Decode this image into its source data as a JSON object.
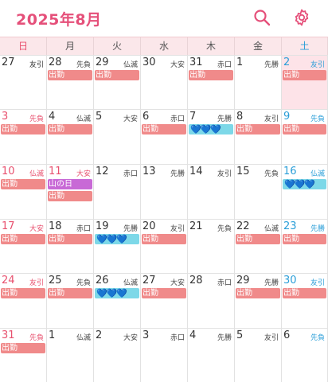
{
  "header": {
    "title": "2025年8月",
    "accent": "#e5507a"
  },
  "weekdays": [
    "日",
    "月",
    "火",
    "水",
    "木",
    "金",
    "土"
  ],
  "weeks": [
    [
      {
        "day": "27",
        "rokuyo": "友引",
        "out": true,
        "events": []
      },
      {
        "day": "28",
        "rokuyo": "先負",
        "out": true,
        "events": [
          {
            "type": "work",
            "label": "出勤"
          }
        ]
      },
      {
        "day": "29",
        "rokuyo": "仏滅",
        "out": true,
        "events": [
          {
            "type": "work",
            "label": "出勤"
          }
        ]
      },
      {
        "day": "30",
        "rokuyo": "大安",
        "out": true,
        "events": []
      },
      {
        "day": "31",
        "rokuyo": "赤口",
        "out": true,
        "events": [
          {
            "type": "work",
            "label": "出勤"
          }
        ]
      },
      {
        "day": "1",
        "rokuyo": "先勝",
        "events": []
      },
      {
        "day": "2",
        "rokuyo": "友引",
        "today": true,
        "events": [
          {
            "type": "work",
            "label": "出勤"
          }
        ]
      }
    ],
    [
      {
        "day": "3",
        "rokuyo": "先負",
        "events": [
          {
            "type": "work",
            "label": "出勤"
          }
        ]
      },
      {
        "day": "4",
        "rokuyo": "仏滅",
        "events": [
          {
            "type": "work",
            "label": "出勤"
          }
        ]
      },
      {
        "day": "5",
        "rokuyo": "大安",
        "events": []
      },
      {
        "day": "6",
        "rokuyo": "赤口",
        "events": [
          {
            "type": "work",
            "label": "出勤"
          }
        ]
      },
      {
        "day": "7",
        "rokuyo": "先勝",
        "events": [
          {
            "type": "hearts",
            "label": "💙💙💙"
          }
        ]
      },
      {
        "day": "8",
        "rokuyo": "友引",
        "events": [
          {
            "type": "work",
            "label": "出勤"
          }
        ]
      },
      {
        "day": "9",
        "rokuyo": "先負",
        "events": [
          {
            "type": "work",
            "label": "出勤"
          }
        ]
      }
    ],
    [
      {
        "day": "10",
        "rokuyo": "仏滅",
        "events": [
          {
            "type": "work",
            "label": "出勤"
          }
        ]
      },
      {
        "day": "11",
        "rokuyo": "大安",
        "holiday": true,
        "events": [
          {
            "type": "hol",
            "label": "山の日"
          },
          {
            "type": "work",
            "label": "出勤"
          }
        ]
      },
      {
        "day": "12",
        "rokuyo": "赤口",
        "events": []
      },
      {
        "day": "13",
        "rokuyo": "先勝",
        "events": []
      },
      {
        "day": "14",
        "rokuyo": "友引",
        "events": []
      },
      {
        "day": "15",
        "rokuyo": "先負",
        "events": []
      },
      {
        "day": "16",
        "rokuyo": "仏滅",
        "events": [
          {
            "type": "hearts",
            "label": "💙💙💙"
          }
        ]
      }
    ],
    [
      {
        "day": "17",
        "rokuyo": "大安",
        "events": [
          {
            "type": "work",
            "label": "出勤"
          }
        ]
      },
      {
        "day": "18",
        "rokuyo": "赤口",
        "events": [
          {
            "type": "work",
            "label": "出勤"
          }
        ]
      },
      {
        "day": "19",
        "rokuyo": "先勝",
        "events": [
          {
            "type": "hearts",
            "label": "💙💙💙"
          }
        ]
      },
      {
        "day": "20",
        "rokuyo": "友引",
        "events": [
          {
            "type": "work",
            "label": "出勤"
          }
        ]
      },
      {
        "day": "21",
        "rokuyo": "先負",
        "events": []
      },
      {
        "day": "22",
        "rokuyo": "仏滅",
        "events": [
          {
            "type": "work",
            "label": "出勤"
          }
        ]
      },
      {
        "day": "23",
        "rokuyo": "先勝",
        "events": [
          {
            "type": "work",
            "label": "出勤"
          }
        ]
      }
    ],
    [
      {
        "day": "24",
        "rokuyo": "友引",
        "events": [
          {
            "type": "work",
            "label": "出勤"
          }
        ]
      },
      {
        "day": "25",
        "rokuyo": "先負",
        "events": [
          {
            "type": "work",
            "label": "出勤"
          }
        ]
      },
      {
        "day": "26",
        "rokuyo": "仏滅",
        "events": [
          {
            "type": "hearts",
            "label": "💙💙💙"
          }
        ]
      },
      {
        "day": "27",
        "rokuyo": "大安",
        "events": [
          {
            "type": "work",
            "label": "出勤"
          }
        ]
      },
      {
        "day": "28",
        "rokuyo": "赤口",
        "events": []
      },
      {
        "day": "29",
        "rokuyo": "先勝",
        "events": [
          {
            "type": "work",
            "label": "出勤"
          }
        ]
      },
      {
        "day": "30",
        "rokuyo": "友引",
        "events": [
          {
            "type": "work",
            "label": "出勤"
          }
        ]
      }
    ],
    [
      {
        "day": "31",
        "rokuyo": "先負",
        "events": [
          {
            "type": "work",
            "label": "出勤"
          }
        ]
      },
      {
        "day": "1",
        "rokuyo": "仏滅",
        "out": true,
        "events": []
      },
      {
        "day": "2",
        "rokuyo": "大安",
        "out": true,
        "events": []
      },
      {
        "day": "3",
        "rokuyo": "赤口",
        "out": true,
        "events": []
      },
      {
        "day": "4",
        "rokuyo": "先勝",
        "out": true,
        "events": []
      },
      {
        "day": "5",
        "rokuyo": "友引",
        "out": true,
        "events": []
      },
      {
        "day": "6",
        "rokuyo": "先負",
        "out": true,
        "events": []
      }
    ]
  ]
}
